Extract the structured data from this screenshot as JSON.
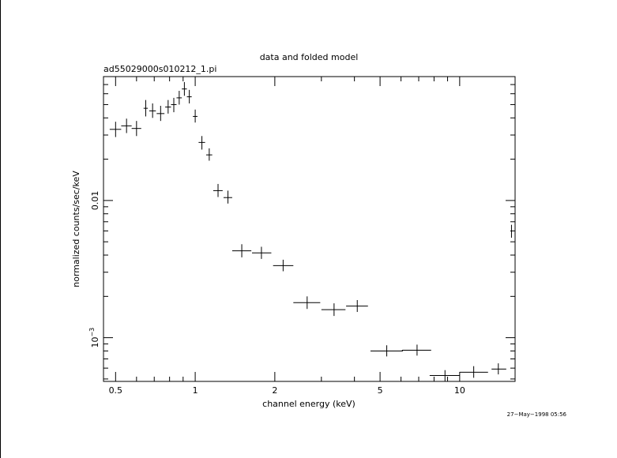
{
  "chart_data": {
    "type": "scatter",
    "title": "data and folded model",
    "subtitle": "ad55029000s010212_1.pi",
    "xlabel": "channel energy (keV)",
    "ylabel": "normalized counts/sec/keV",
    "xscale": "log",
    "yscale": "log",
    "xlim": [
      0.45,
      16.2
    ],
    "ylim": [
      0.00048,
      0.08
    ],
    "grid": false,
    "x_ticks": [
      {
        "value": 0.5,
        "label": "0.5"
      },
      {
        "value": 1,
        "label": "1"
      },
      {
        "value": 2,
        "label": "2"
      },
      {
        "value": 5,
        "label": "5"
      },
      {
        "value": 10,
        "label": "10"
      }
    ],
    "y_ticks": [
      {
        "value": 0.001,
        "base": "10",
        "exp": "−3"
      },
      {
        "value": 0.01,
        "label": "0.01"
      }
    ],
    "points": [
      {
        "x": 0.5,
        "y": 0.033,
        "xerr": [
          0.025,
          0.025
        ],
        "yerr": [
          0.004,
          0.0045
        ]
      },
      {
        "x": 0.55,
        "y": 0.035,
        "xerr": [
          0.025,
          0.025
        ],
        "yerr": [
          0.004,
          0.0045
        ]
      },
      {
        "x": 0.6,
        "y": 0.0335,
        "xerr": [
          0.025,
          0.025
        ],
        "yerr": [
          0.004,
          0.0045
        ]
      },
      {
        "x": 0.65,
        "y": 0.047,
        "xerr": [
          0.012,
          0.012
        ],
        "yerr": [
          0.006,
          0.007
        ]
      },
      {
        "x": 0.69,
        "y": 0.045,
        "xerr": [
          0.02,
          0.02
        ],
        "yerr": [
          0.005,
          0.006
        ]
      },
      {
        "x": 0.74,
        "y": 0.043,
        "xerr": [
          0.025,
          0.025
        ],
        "yerr": [
          0.005,
          0.006
        ]
      },
      {
        "x": 0.79,
        "y": 0.048,
        "xerr": [
          0.02,
          0.02
        ],
        "yerr": [
          0.005,
          0.006
        ]
      },
      {
        "x": 0.83,
        "y": 0.05,
        "xerr": [
          0.02,
          0.02
        ],
        "yerr": [
          0.006,
          0.006
        ]
      },
      {
        "x": 0.87,
        "y": 0.056,
        "xerr": [
          0.02,
          0.02
        ],
        "yerr": [
          0.006,
          0.007
        ]
      },
      {
        "x": 0.91,
        "y": 0.065,
        "xerr": [
          0.02,
          0.02
        ],
        "yerr": [
          0.007,
          0.008
        ]
      },
      {
        "x": 0.95,
        "y": 0.057,
        "xerr": [
          0.02,
          0.02
        ],
        "yerr": [
          0.006,
          0.007
        ]
      },
      {
        "x": 1.0,
        "y": 0.041,
        "xerr": [
          0.02,
          0.02
        ],
        "yerr": [
          0.004,
          0.005
        ]
      },
      {
        "x": 1.06,
        "y": 0.0265,
        "xerr": [
          0.03,
          0.03
        ],
        "yerr": [
          0.003,
          0.003
        ]
      },
      {
        "x": 1.13,
        "y": 0.0215,
        "xerr": [
          0.03,
          0.03
        ],
        "yerr": [
          0.002,
          0.0025
        ]
      },
      {
        "x": 1.22,
        "y": 0.0118,
        "xerr": [
          0.05,
          0.05
        ],
        "yerr": [
          0.0012,
          0.0014
        ]
      },
      {
        "x": 1.33,
        "y": 0.0105,
        "xerr": [
          0.05,
          0.05
        ],
        "yerr": [
          0.001,
          0.0013
        ]
      },
      {
        "x": 1.5,
        "y": 0.0043,
        "xerr": [
          0.12,
          0.13
        ],
        "yerr": [
          0.00045,
          0.0005
        ]
      },
      {
        "x": 1.78,
        "y": 0.00415,
        "xerr": [
          0.14,
          0.16
        ],
        "yerr": [
          0.0004,
          0.00045
        ]
      },
      {
        "x": 2.15,
        "y": 0.00335,
        "xerr": [
          0.18,
          0.2
        ],
        "yerr": [
          0.0003,
          0.00035
        ]
      },
      {
        "x": 2.65,
        "y": 0.0018,
        "xerr": [
          0.3,
          0.32
        ],
        "yerr": [
          0.00018,
          0.0002
        ]
      },
      {
        "x": 3.35,
        "y": 0.0016,
        "xerr": [
          0.35,
          0.35
        ],
        "yerr": [
          0.00016,
          0.00018
        ]
      },
      {
        "x": 4.1,
        "y": 0.0017,
        "xerr": [
          0.38,
          0.4
        ],
        "yerr": [
          0.00016,
          0.00018
        ]
      },
      {
        "x": 5.3,
        "y": 0.0008,
        "xerr": [
          0.7,
          0.8
        ],
        "yerr": [
          7e-05,
          8e-05
        ]
      },
      {
        "x": 6.9,
        "y": 0.00081,
        "xerr": [
          0.85,
          0.9
        ],
        "yerr": [
          7e-05,
          8e-05
        ]
      },
      {
        "x": 8.8,
        "y": 0.00053,
        "xerr": [
          1.1,
          1.2
        ],
        "yerr": [
          5e-05,
          5e-05
        ]
      },
      {
        "x": 11.3,
        "y": 0.00056,
        "xerr": [
          1.3,
          1.5
        ],
        "yerr": [
          5e-05,
          6e-05
        ]
      },
      {
        "x": 14.0,
        "y": 0.00059,
        "xerr": [
          0.8,
          1.0
        ],
        "yerr": [
          5e-05,
          6e-05
        ]
      },
      {
        "x": 15.7,
        "y": 0.00595,
        "xerr": [
          0.05,
          0.05
        ],
        "yerr": [
          0.0006,
          0.0007
        ]
      }
    ]
  },
  "footer": {
    "timestamp": "27−May−1998 05:56"
  }
}
